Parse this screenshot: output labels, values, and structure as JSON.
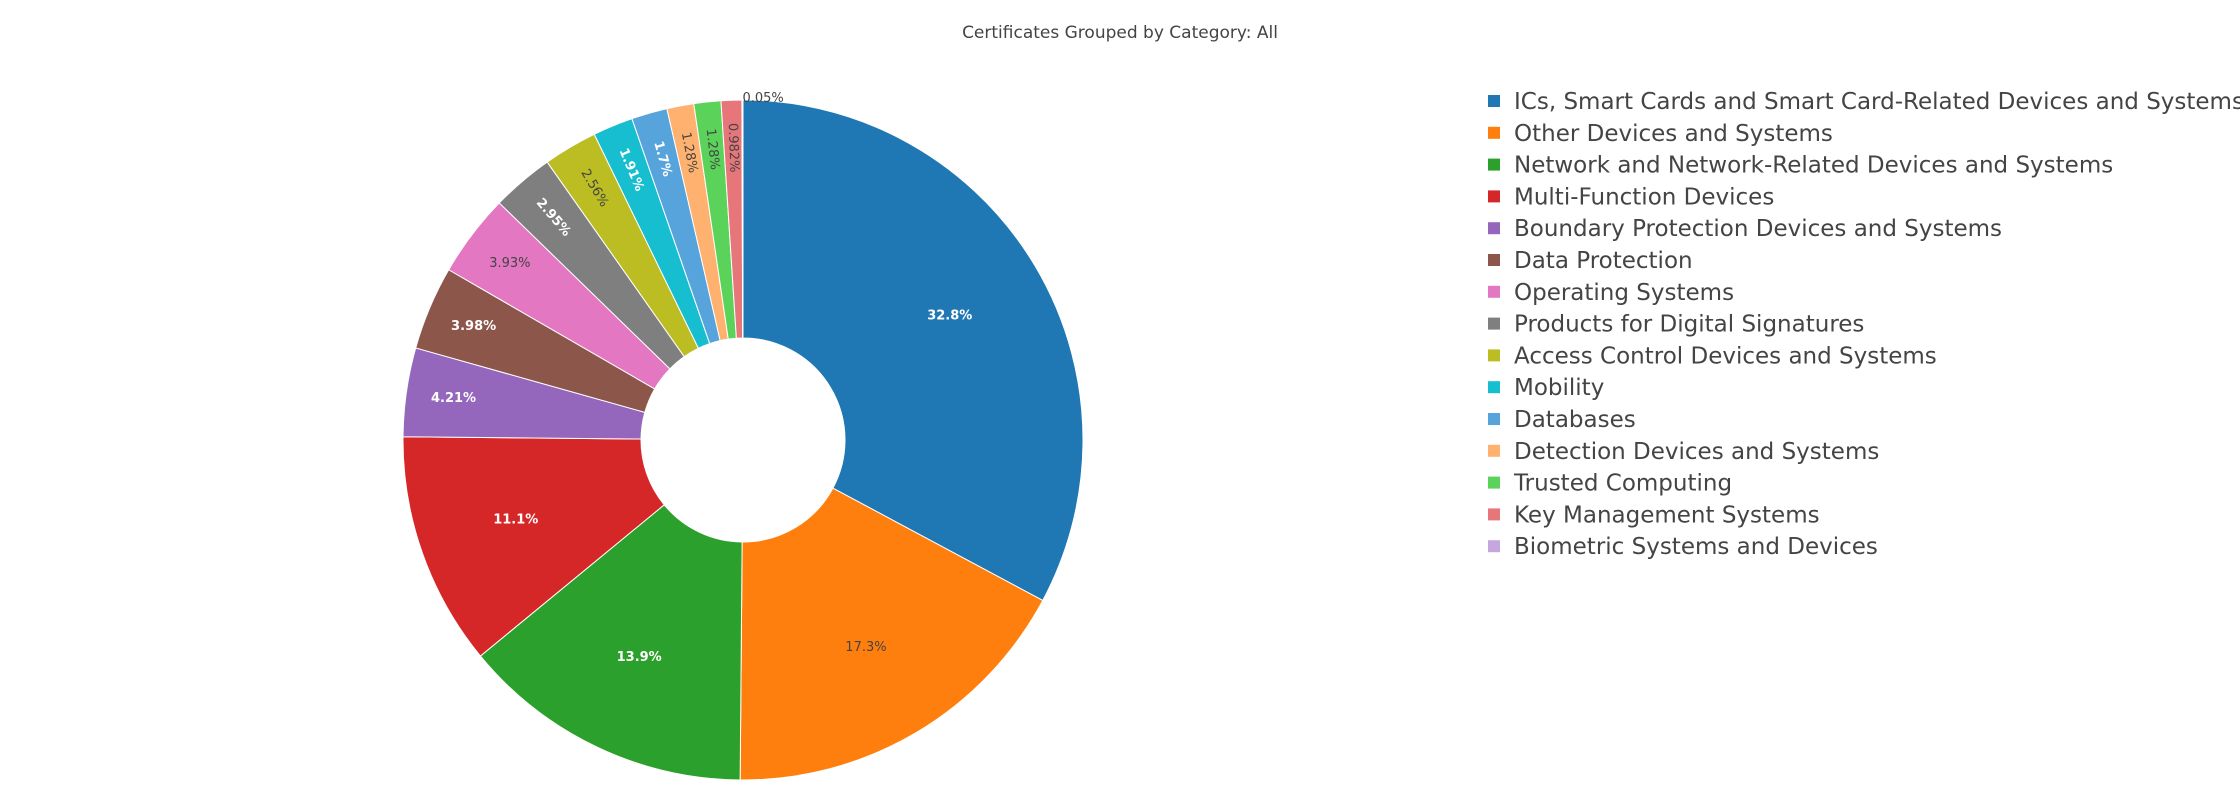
{
  "chart_data": {
    "type": "pie",
    "title": "Certificates Grouped by Category: All",
    "hole": 0.3,
    "legend_position": "right",
    "slices": [
      {
        "label": "ICs, Smart Cards and Smart Card-Related Devices and Systems",
        "value": 32.8,
        "text": "32.8%",
        "color": "#1f77b4"
      },
      {
        "label": "Other Devices and Systems",
        "value": 17.3,
        "text": "17.3%",
        "color": "#ff7f0e"
      },
      {
        "label": "Network and Network-Related Devices and Systems",
        "value": 13.9,
        "text": "13.9%",
        "color": "#2ca02c"
      },
      {
        "label": "Multi-Function Devices",
        "value": 11.1,
        "text": "11.1%",
        "color": "#d62728"
      },
      {
        "label": "Boundary Protection Devices and Systems",
        "value": 4.21,
        "text": "4.21%",
        "color": "#9467bd"
      },
      {
        "label": "Data Protection",
        "value": 3.98,
        "text": "3.98%",
        "color": "#8c564b"
      },
      {
        "label": "Operating Systems",
        "value": 3.93,
        "text": "3.93%",
        "color": "#e377c2"
      },
      {
        "label": "Products for Digital Signatures",
        "value": 2.95,
        "text": "2.95%",
        "color": "#7f7f7f"
      },
      {
        "label": "Access Control Devices and Systems",
        "value": 2.56,
        "text": "2.56%",
        "color": "#bcbd22"
      },
      {
        "label": "Mobility",
        "value": 1.91,
        "text": "1.91%",
        "color": "#17becf"
      },
      {
        "label": "Databases",
        "value": 1.7,
        "text": "1.7%",
        "color": "#57a3dc"
      },
      {
        "label": "Detection Devices and Systems",
        "value": 1.28,
        "text": "1.28%",
        "color": "#ffb26f"
      },
      {
        "label": "Trusted Computing",
        "value": 1.28,
        "text": "1.28%",
        "color": "#5bd35b"
      },
      {
        "label": "Key Management Systems",
        "value": 0.982,
        "text": "0.982%",
        "color": "#e7767a"
      },
      {
        "label": "Biometric Systems and Devices",
        "value": 0.05,
        "text": "0.05%",
        "color": "#c6a6df"
      }
    ]
  }
}
